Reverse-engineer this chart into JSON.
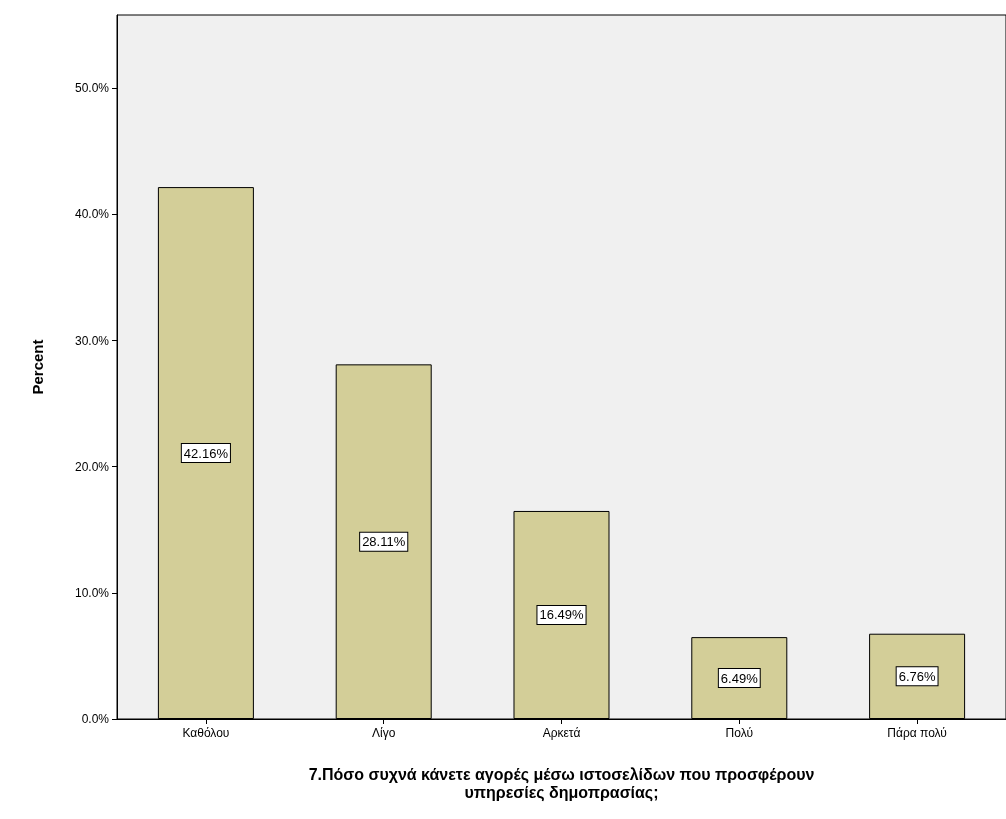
{
  "chart_data": {
    "type": "bar",
    "xlabel": "7.Πόσο συχνά κάνετε αγορές μέσω ιστοσελίδων που προσφέρουν\nυπηρεσίες δημοπρασίας;",
    "ylabel": "Percent",
    "categories": [
      "Καθόλου",
      "Λίγο",
      "Αρκετά",
      "Πολύ",
      "Πάρα πολύ"
    ],
    "values": [
      42.16,
      28.11,
      16.49,
      6.49,
      6.76
    ],
    "value_labels": [
      "42.16%",
      "28.11%",
      "16.49%",
      "6.49%",
      "6.76%"
    ],
    "color": "#d3ce98",
    "ylim": [
      0,
      55.8
    ],
    "yticks": [
      {
        "value": 0,
        "label": "0.0%"
      },
      {
        "value": 10,
        "label": "10.0%"
      },
      {
        "value": 20,
        "label": "20.0%"
      },
      {
        "value": 30,
        "label": "30.0%"
      },
      {
        "value": 40,
        "label": "40.0%"
      },
      {
        "value": 50,
        "label": "50.0%"
      }
    ],
    "grid": false
  }
}
